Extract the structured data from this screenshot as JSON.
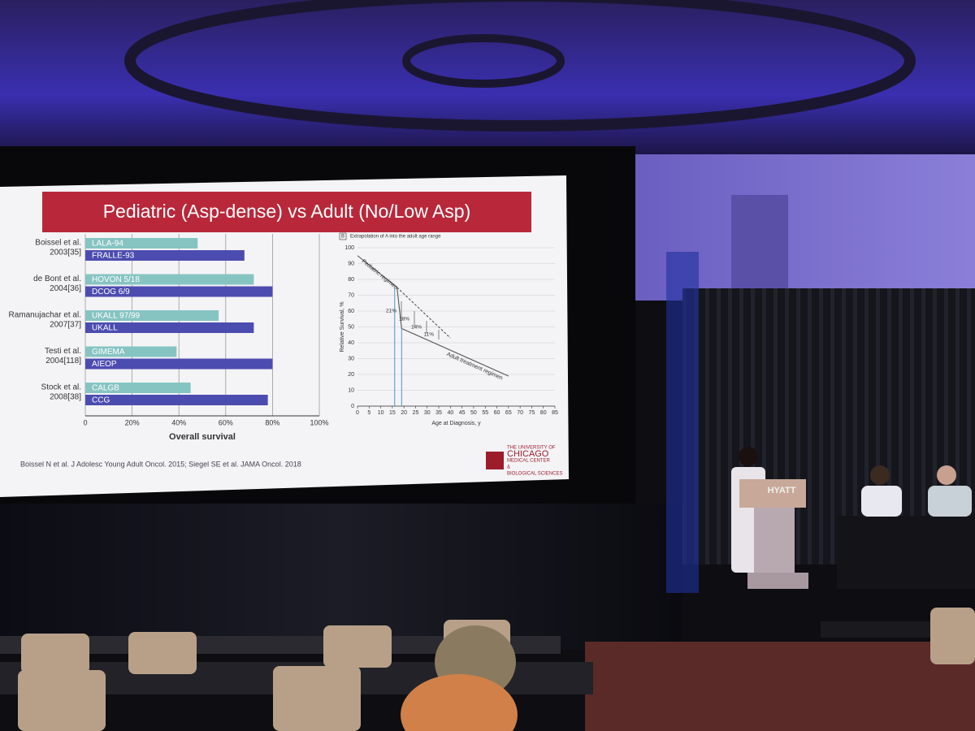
{
  "slide": {
    "title": "Pediatric (Asp-dense) vs Adult (No/Low Asp)",
    "citation": "Boissel N et al. J Adolesc Young Adult Oncol. 2015; Siegel SE et al. JAMA Oncol. 2018",
    "logo": [
      "THE UNIVERSITY OF",
      "CHICAGO",
      "MEDICAL CENTER",
      "&",
      "BIOLOGICAL SCIENCES"
    ]
  },
  "podium": "HYATT",
  "chart_data": [
    {
      "type": "bar",
      "orientation": "horizontal",
      "xlabel": "Overall survival",
      "bar_colors": [
        "#86c4c2",
        "#4c4cb0"
      ],
      "groups": [
        {
          "name": [
            "Boissel et al.",
            "2003[35]"
          ],
          "bars": [
            {
              "label": "LALA-94",
              "value": 48
            },
            {
              "label": "FRALLE-93",
              "value": 68
            }
          ]
        },
        {
          "name": [
            "de Bont et al.",
            "2004[36]"
          ],
          "bars": [
            {
              "label": "HOVON 5/18",
              "value": 72
            },
            {
              "label": "DCOG 6/9",
              "value": 80
            }
          ]
        },
        {
          "name": [
            "Ramanujachar et al.",
            "2007[37]"
          ],
          "bars": [
            {
              "label": "UKALL 97/99",
              "value": 57
            },
            {
              "label": "UKALL",
              "value": 72
            }
          ]
        },
        {
          "name": [
            "Testi et al.",
            "2004[118]"
          ],
          "bars": [
            {
              "label": "GIMEMA",
              "value": 39
            },
            {
              "label": "AIEOP",
              "value": 80
            }
          ]
        },
        {
          "name": [
            "Stock et al.",
            "2008[38]"
          ],
          "bars": [
            {
              "label": "CALGB",
              "value": 45
            },
            {
              "label": "CCG",
              "value": 78
            }
          ]
        }
      ],
      "xlim": [
        0,
        100
      ],
      "xticks": [
        0,
        {
          "value": 20,
          "label": "20%"
        },
        {
          "value": 40,
          "label": "40%"
        },
        {
          "value": 60,
          "label": "60%"
        },
        {
          "value": 80,
          "label": "80%"
        },
        {
          "value": 100,
          "label": "100%"
        }
      ],
      "grid": true
    },
    {
      "type": "line",
      "panel": "B",
      "title": "Extrapolation of A into the adult age range",
      "xlabel": "Age at Diagnosis, y",
      "ylabel": "Relative Survival, %",
      "series": [
        {
          "name": "Pediatric regimen",
          "color": "#555555",
          "x": [
            0,
            17
          ],
          "values": [
            95,
            75
          ]
        },
        {
          "color": "#555555",
          "dashed": true,
          "x": [
            17,
            40
          ],
          "values": [
            75,
            43
          ]
        },
        {
          "name": "Adult treatment regimen",
          "color": "#555555",
          "x": [
            17,
            19,
            65
          ],
          "values": [
            75,
            49,
            19
          ]
        },
        {
          "color": "#5aa0c8",
          "x": [
            16,
            16
          ],
          "values": [
            75,
            0
          ]
        },
        {
          "color": "#5aa0c8",
          "x": [
            19,
            19
          ],
          "values": [
            49,
            0
          ]
        }
      ],
      "annotations": [
        "21%",
        "18%",
        "14%",
        "11%"
      ],
      "xlim": [
        0,
        85
      ],
      "xticks": [
        0,
        5,
        10,
        15,
        20,
        25,
        30,
        35,
        40,
        45,
        50,
        55,
        60,
        65,
        70,
        75,
        80,
        85
      ],
      "ylim": [
        0,
        100
      ],
      "yticks": [
        0,
        10,
        20,
        30,
        40,
        50,
        60,
        70,
        80,
        90,
        100
      ],
      "grid": true
    }
  ]
}
